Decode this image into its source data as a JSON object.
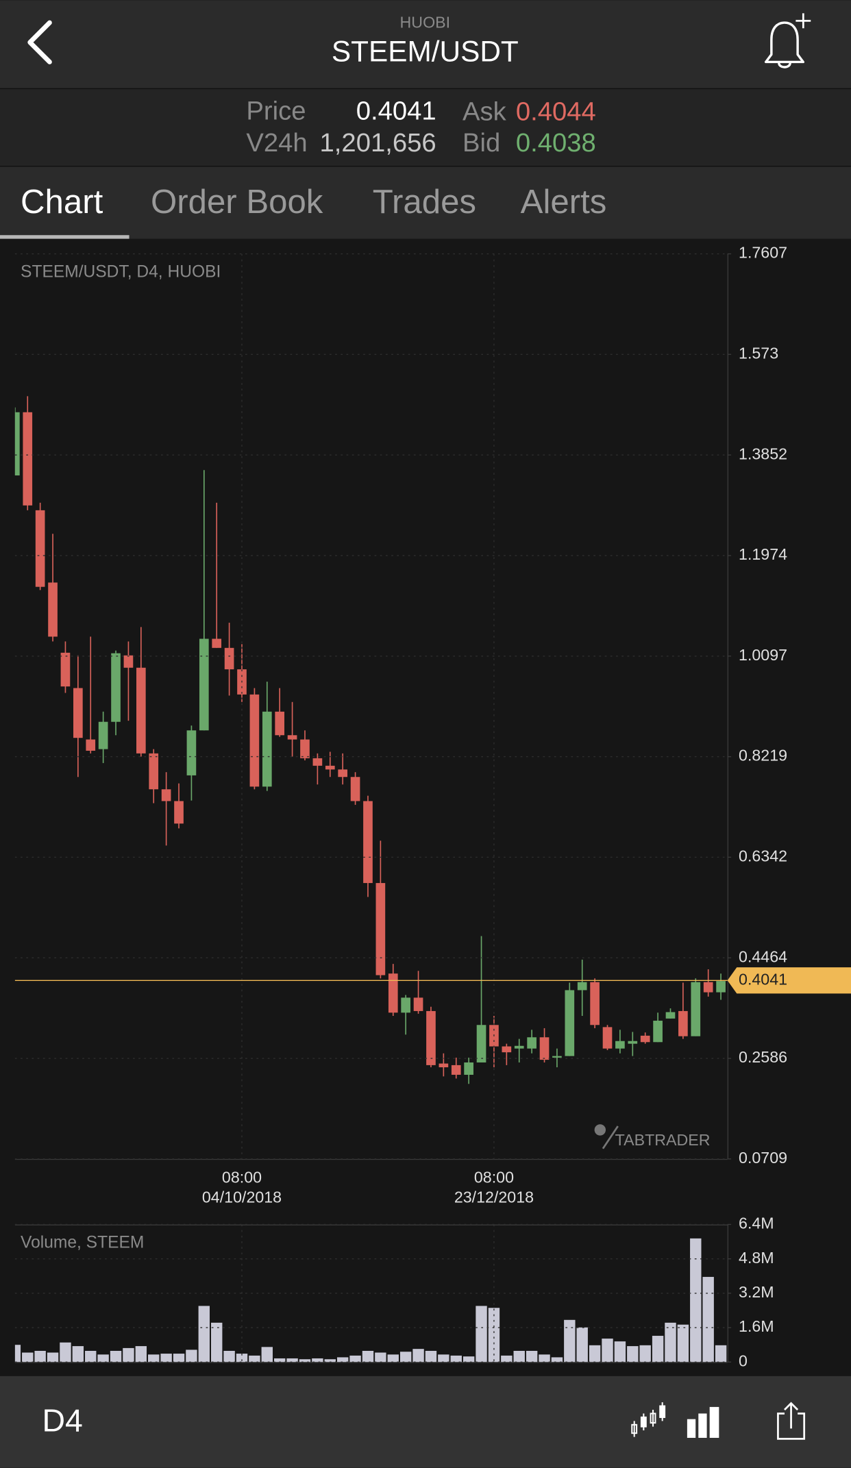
{
  "header": {
    "exchange": "HUOBI",
    "title": "STEEM/USDT"
  },
  "ticker": {
    "price_label": "Price",
    "price": "0.4041",
    "volume_label": "V24h",
    "volume": "1,201,656",
    "ask_label": "Ask",
    "ask": "0.4044",
    "bid_label": "Bid",
    "bid": "0.4038"
  },
  "tabs": [
    "Chart",
    "Order Book",
    "Trades",
    "Alerts"
  ],
  "active_tab": 0,
  "chart_data": [
    {
      "type": "candlestick",
      "title": "STEEM/USDT, D4, HUOBI",
      "categories": [
        null,
        null,
        null,
        null,
        null,
        null,
        null,
        null,
        null,
        null,
        null,
        null,
        null,
        null,
        null,
        null,
        null,
        null,
        [
          "08:00",
          "04/10/2018"
        ],
        null,
        null,
        null,
        null,
        null,
        null,
        null,
        null,
        null,
        null,
        null,
        null,
        null,
        null,
        null,
        null,
        null,
        null,
        null,
        [
          "08:00",
          "23/12/2018"
        ],
        null,
        null,
        null,
        null,
        null,
        null,
        null,
        null,
        null,
        null,
        null,
        null,
        null,
        null,
        null,
        null,
        null,
        null
      ],
      "open": [
        1.347,
        1.465,
        1.282,
        1.147,
        1.016,
        0.95,
        0.854,
        0.836,
        0.887,
        1.011,
        0.988,
        0.828,
        0.761,
        0.739,
        0.787,
        0.871,
        1.042,
        1.025,
        0.985,
        0.938,
        0.766,
        0.906,
        0.862,
        0.854,
        0.819,
        0.805,
        0.798,
        0.784,
        0.739,
        0.586,
        0.417,
        0.344,
        0.372,
        0.347,
        0.249,
        0.246,
        0.228,
        0.251,
        0.321,
        0.281,
        0.277,
        0.277,
        0.298,
        0.26,
        0.263,
        0.386,
        0.401,
        0.317,
        0.277,
        0.286,
        0.301,
        0.289,
        0.333,
        0.347,
        0.3,
        0.401,
        0.382
      ],
      "high": [
        1.474,
        1.495,
        1.296,
        1.238,
        1.037,
        1.011,
        1.046,
        0.906,
        1.02,
        1.037,
        1.064,
        0.836,
        0.793,
        0.772,
        0.88,
        1.357,
        1.296,
        1.072,
        1.032,
        0.95,
        0.962,
        0.95,
        0.924,
        0.871,
        0.828,
        0.831,
        0.828,
        0.793,
        0.749,
        0.665,
        0.435,
        0.377,
        0.422,
        0.355,
        0.268,
        0.26,
        0.26,
        0.487,
        0.338,
        0.286,
        0.295,
        0.312,
        0.315,
        0.277,
        0.4,
        0.443,
        0.408,
        0.321,
        0.312,
        0.308,
        0.307,
        0.344,
        0.352,
        0.4,
        0.408,
        0.425,
        0.417
      ],
      "low": [
        1.347,
        1.282,
        1.133,
        1.037,
        0.941,
        0.784,
        0.828,
        0.81,
        0.862,
        0.889,
        0.822,
        0.735,
        0.656,
        0.688,
        0.74,
        0.871,
        1.025,
        0.936,
        0.924,
        0.761,
        0.758,
        0.859,
        0.822,
        0.815,
        0.77,
        0.784,
        0.77,
        0.732,
        0.56,
        0.408,
        0.338,
        0.303,
        0.342,
        0.242,
        0.225,
        0.221,
        0.211,
        0.251,
        0.242,
        0.246,
        0.251,
        0.268,
        0.251,
        0.242,
        0.263,
        0.338,
        0.315,
        0.274,
        0.268,
        0.263,
        0.286,
        0.289,
        0.333,
        0.295,
        0.3,
        0.374,
        0.368
      ],
      "close": [
        1.465,
        1.291,
        1.139,
        1.046,
        0.953,
        0.857,
        0.833,
        0.887,
        1.015,
        0.988,
        0.828,
        0.761,
        0.739,
        0.697,
        0.871,
        1.042,
        1.025,
        0.985,
        0.938,
        0.766,
        0.906,
        0.862,
        0.854,
        0.819,
        0.805,
        0.798,
        0.784,
        0.739,
        0.586,
        0.414,
        0.344,
        0.372,
        0.347,
        0.246,
        0.242,
        0.228,
        0.251,
        0.321,
        0.281,
        0.27,
        0.282,
        0.298,
        0.256,
        0.263,
        0.386,
        0.401,
        0.321,
        0.277,
        0.291,
        0.291,
        0.289,
        0.329,
        0.345,
        0.3,
        0.401,
        0.382,
        0.403
      ],
      "up_color": "#6aa86a",
      "down_color": "#d9625a",
      "ylim": [
        0.0709,
        1.7607
      ],
      "yticks": [
        0.0709,
        0.2586,
        0.4464,
        0.6342,
        0.8219,
        1.0097,
        1.1974,
        1.3852,
        1.573,
        1.7607
      ],
      "grid": true,
      "last_price": {
        "value": 0.4041,
        "color": "#f0b955"
      }
    },
    {
      "type": "bar",
      "title": "Volume, STEEM",
      "values": [
        800000,
        440000,
        520000,
        440000,
        910000,
        740000,
        520000,
        350000,
        520000,
        650000,
        740000,
        350000,
        390000,
        390000,
        570000,
        2610000,
        1830000,
        520000,
        390000,
        300000,
        700000,
        170000,
        170000,
        130000,
        170000,
        130000,
        220000,
        300000,
        520000,
        440000,
        350000,
        480000,
        610000,
        520000,
        350000,
        300000,
        260000,
        2610000,
        2520000,
        300000,
        520000,
        520000,
        350000,
        220000,
        1960000,
        1610000,
        780000,
        1090000,
        960000,
        740000,
        780000,
        1220000,
        1830000,
        1740000,
        5750000,
        3960000,
        780000
      ],
      "color": "#c9c9d6",
      "ylim": [
        0,
        6400000
      ],
      "yticks": [
        0,
        {
          "value": 1600000,
          "label": "1.6M"
        },
        {
          "value": 3200000,
          "label": "3.2M"
        },
        {
          "value": 4800000,
          "label": "4.8M"
        },
        {
          "value": 6400000,
          "label": "6.4M"
        }
      ],
      "grid": true
    }
  ],
  "watermark": "TABTRADER",
  "footer": {
    "interval": "D4"
  }
}
